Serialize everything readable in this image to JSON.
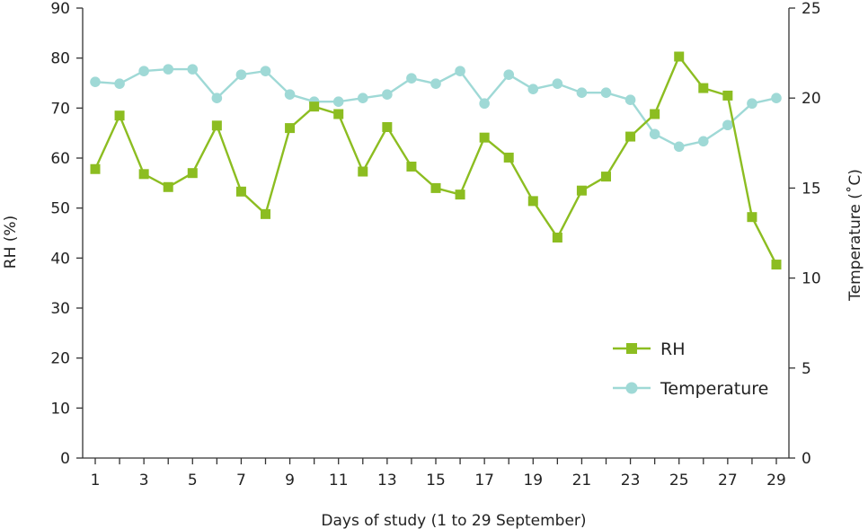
{
  "chart_data": {
    "type": "line",
    "title": "",
    "xlabel": "Days of study (1 to 29 September)",
    "ylabel": "RH (%)",
    "y2label": "Temperature (˚C)",
    "x": [
      1,
      2,
      3,
      4,
      5,
      6,
      7,
      8,
      9,
      10,
      11,
      12,
      13,
      14,
      15,
      16,
      17,
      18,
      19,
      20,
      21,
      22,
      23,
      24,
      25,
      26,
      27,
      28,
      29
    ],
    "xticks": [
      "1",
      "3",
      "5",
      "7",
      "9",
      "11",
      "13",
      "15",
      "17",
      "19",
      "21",
      "23",
      "25",
      "27",
      "29"
    ],
    "ylim": [
      0,
      90
    ],
    "yticks": [
      "0",
      "10",
      "20",
      "30",
      "40",
      "50",
      "60",
      "70",
      "80",
      "90"
    ],
    "y2lim": [
      0,
      25
    ],
    "y2ticks": [
      "0",
      "5",
      "10",
      "15",
      "20",
      "25"
    ],
    "grid": false,
    "legend_position": "bottom-right",
    "series": [
      {
        "name": "RH",
        "axis": "left",
        "marker": "square",
        "color": "#8cbd21",
        "values": [
          57.8,
          68.5,
          56.8,
          54.2,
          57.0,
          66.5,
          53.3,
          48.8,
          66.0,
          70.3,
          68.8,
          57.3,
          66.2,
          58.3,
          54.0,
          52.7,
          64.1,
          60.1,
          51.4,
          44.1,
          53.5,
          56.3,
          64.3,
          68.8,
          80.3,
          74.0,
          72.5,
          48.2,
          38.7
        ]
      },
      {
        "name": "Temperature",
        "axis": "right",
        "marker": "circle",
        "color": "#9fd9d6",
        "values": [
          20.9,
          20.8,
          21.5,
          21.6,
          21.6,
          20.0,
          21.3,
          21.5,
          20.2,
          19.8,
          19.8,
          20.0,
          20.2,
          21.1,
          20.8,
          21.5,
          19.7,
          21.3,
          20.5,
          20.8,
          20.3,
          20.3,
          19.9,
          18.0,
          17.3,
          17.6,
          18.5,
          19.7,
          20.0
        ]
      }
    ]
  }
}
